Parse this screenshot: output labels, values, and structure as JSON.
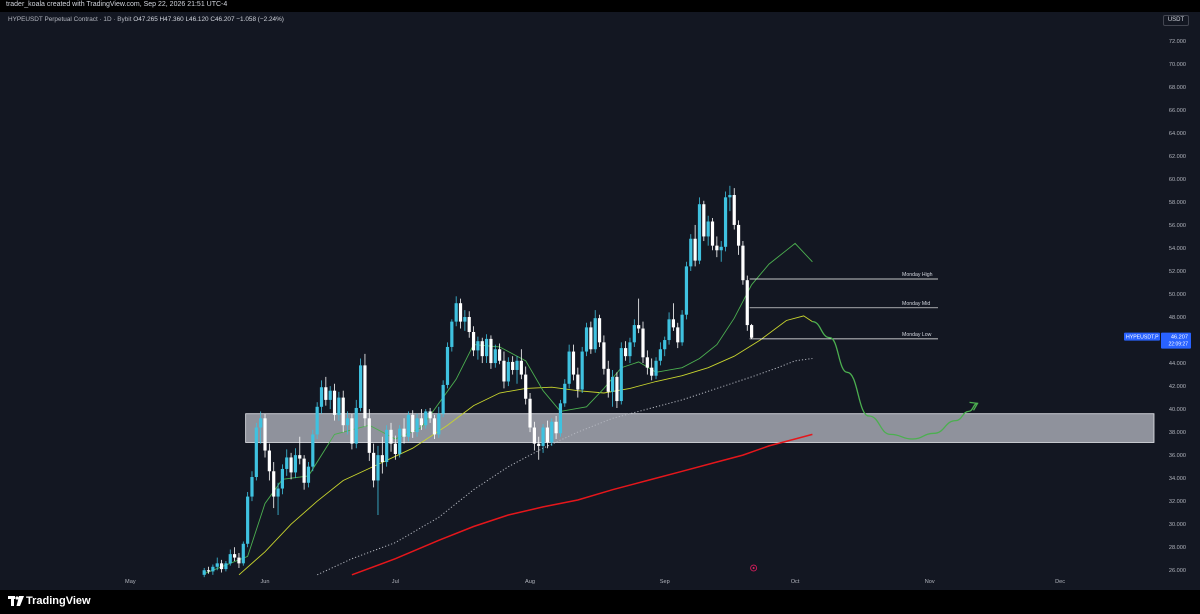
{
  "header": {
    "creator_text": "trader_koala created with TradingView.com, Sep 22, 2026 21:51 UTC-4",
    "symbol": "HYPEUSDT Perpetual Contract · 1D · Bybit",
    "ohlc": "O47.265 H47.360 L46.120 C46.207 −1.058 (−2.24%)"
  },
  "footer": {
    "brand": "TradingView"
  },
  "colors": {
    "background": "#131722",
    "up_candle": "#3fc2e0",
    "down_candle": "#ffffff",
    "ma_fast": "#4caf50",
    "ma_mid": "#c8d42e",
    "ma_dotted": "#b2b5be",
    "ma_slow": "#e5161b",
    "projection": "#4caf50",
    "price_label": "#2962ff"
  },
  "chart_data": {
    "type": "candlestick",
    "currency": "USDT",
    "ylim": [
      25.5,
      74.5
    ],
    "y_ticks": [
      "72.000",
      "70.000",
      "68.000",
      "66.000",
      "64.000",
      "62.000",
      "60.000",
      "58.000",
      "56.000",
      "54.000",
      "52.000",
      "50.000",
      "48.000",
      "46.000",
      "44.000",
      "42.000",
      "40.000",
      "38.000",
      "36.000",
      "34.000",
      "32.000",
      "30.000",
      "28.000",
      "26.000"
    ],
    "y_tick_values": [
      72,
      70,
      68,
      66,
      64,
      62,
      60,
      58,
      56,
      54,
      52,
      50,
      48,
      46,
      44,
      42,
      40,
      38,
      36,
      34,
      32,
      30,
      28,
      26
    ],
    "x_ticks": [
      {
        "label": "May",
        "date": "2026-05-01"
      },
      {
        "label": "Jun",
        "date": "2026-06-01"
      },
      {
        "label": "Jul",
        "date": "2026-07-01"
      },
      {
        "label": "Aug",
        "date": "2026-08-01"
      },
      {
        "label": "Sep",
        "date": "2026-09-01"
      },
      {
        "label": "Oct",
        "date": "2026-10-01"
      },
      {
        "label": "Nov",
        "date": "2026-11-01"
      },
      {
        "label": "Dec",
        "date": "2026-12-01"
      }
    ],
    "x_range": [
      "2026-04-01",
      "2026-12-24"
    ],
    "first_candle_date": "2026-05-18",
    "candles_ohlc": [
      [
        25.6,
        26.2,
        25.4,
        26.0
      ],
      [
        26.0,
        26.3,
        25.7,
        25.9
      ],
      [
        25.9,
        26.5,
        25.6,
        26.3
      ],
      [
        26.3,
        27.1,
        26.0,
        26.6
      ],
      [
        26.6,
        26.9,
        25.8,
        26.1
      ],
      [
        26.1,
        26.8,
        25.9,
        26.6
      ],
      [
        26.6,
        27.8,
        26.4,
        27.4
      ],
      [
        27.4,
        28.0,
        26.8,
        27.1
      ],
      [
        27.1,
        27.5,
        26.2,
        26.6
      ],
      [
        26.6,
        28.5,
        26.4,
        28.3
      ],
      [
        28.3,
        32.8,
        28.0,
        32.4
      ],
      [
        32.4,
        34.6,
        32.0,
        34.1
      ],
      [
        34.1,
        38.8,
        33.8,
        38.4
      ],
      [
        38.4,
        39.8,
        37.0,
        39.2
      ],
      [
        39.2,
        39.6,
        35.8,
        36.4
      ],
      [
        36.4,
        37.0,
        33.8,
        34.6
      ],
      [
        34.6,
        35.4,
        31.4,
        32.4
      ],
      [
        32.4,
        33.6,
        30.8,
        33.1
      ],
      [
        33.1,
        35.2,
        32.6,
        34.8
      ],
      [
        34.8,
        36.5,
        34.2,
        35.8
      ],
      [
        35.8,
        36.2,
        33.9,
        34.5
      ],
      [
        34.5,
        36.6,
        34.0,
        36.0
      ],
      [
        36.0,
        37.6,
        35.2,
        35.7
      ],
      [
        35.7,
        36.0,
        33.0,
        33.6
      ],
      [
        33.6,
        35.4,
        33.2,
        35.0
      ],
      [
        35.0,
        38.2,
        34.6,
        37.8
      ],
      [
        37.8,
        40.6,
        37.4,
        40.2
      ],
      [
        40.2,
        42.5,
        39.6,
        41.9
      ],
      [
        41.9,
        42.8,
        40.3,
        40.8
      ],
      [
        40.8,
        42.0,
        40.0,
        41.6
      ],
      [
        41.6,
        42.2,
        39.0,
        39.5
      ],
      [
        39.5,
        41.5,
        39.0,
        41.0
      ],
      [
        41.0,
        41.6,
        38.0,
        38.6
      ],
      [
        38.6,
        39.8,
        37.8,
        39.2
      ],
      [
        39.2,
        39.6,
        36.5,
        37.0
      ],
      [
        37.0,
        40.8,
        36.6,
        40.1
      ],
      [
        40.1,
        44.4,
        39.8,
        43.8
      ],
      [
        43.8,
        44.8,
        38.5,
        39.2
      ],
      [
        39.2,
        40.0,
        35.5,
        36.2
      ],
      [
        36.2,
        37.0,
        33.2,
        33.8
      ],
      [
        33.8,
        36.8,
        30.8,
        36.0
      ],
      [
        36.0,
        37.6,
        34.4,
        35.4
      ],
      [
        35.4,
        38.6,
        35.0,
        38.2
      ],
      [
        38.2,
        38.8,
        36.3,
        37.0
      ],
      [
        37.0,
        37.7,
        35.6,
        36.1
      ],
      [
        36.1,
        38.6,
        35.8,
        38.3
      ],
      [
        38.3,
        39.2,
        37.0,
        37.6
      ],
      [
        37.6,
        39.8,
        37.2,
        39.5
      ],
      [
        39.5,
        39.9,
        37.5,
        38.0
      ],
      [
        38.0,
        39.6,
        37.6,
        39.2
      ],
      [
        39.2,
        40.0,
        38.2,
        38.6
      ],
      [
        38.6,
        40.0,
        38.3,
        39.8
      ],
      [
        39.8,
        40.1,
        38.8,
        39.2
      ],
      [
        39.2,
        39.5,
        37.4,
        37.8
      ],
      [
        37.8,
        40.2,
        37.5,
        39.6
      ],
      [
        39.6,
        42.5,
        39.3,
        42.1
      ],
      [
        42.1,
        45.8,
        41.8,
        45.4
      ],
      [
        45.4,
        47.8,
        45.0,
        47.6
      ],
      [
        47.6,
        49.8,
        47.2,
        49.2
      ],
      [
        49.2,
        49.6,
        47.0,
        47.6
      ],
      [
        47.6,
        48.6,
        46.8,
        48.0
      ],
      [
        48.0,
        48.5,
        46.2,
        46.7
      ],
      [
        46.7,
        47.2,
        44.6,
        45.1
      ],
      [
        45.1,
        46.3,
        44.3,
        45.9
      ],
      [
        45.9,
        46.2,
        44.0,
        44.6
      ],
      [
        44.6,
        46.5,
        44.0,
        46.1
      ],
      [
        46.1,
        46.4,
        43.5,
        44.0
      ],
      [
        44.0,
        45.6,
        43.6,
        45.2
      ],
      [
        45.2,
        45.7,
        43.9,
        44.2
      ],
      [
        44.2,
        45.0,
        41.8,
        42.4
      ],
      [
        42.4,
        44.5,
        42.0,
        44.1
      ],
      [
        44.1,
        44.6,
        43.0,
        43.4
      ],
      [
        43.4,
        44.6,
        42.2,
        44.2
      ],
      [
        44.2,
        45.2,
        42.6,
        43.0
      ],
      [
        43.0,
        43.7,
        40.4,
        40.9
      ],
      [
        40.9,
        41.4,
        38.0,
        38.4
      ],
      [
        38.4,
        38.9,
        36.4,
        37.0
      ],
      [
        37.0,
        37.6,
        35.6,
        36.8
      ],
      [
        36.8,
        38.7,
        36.2,
        38.4
      ],
      [
        38.4,
        39.0,
        36.6,
        37.1
      ],
      [
        37.1,
        39.2,
        36.8,
        38.9
      ],
      [
        38.9,
        39.4,
        37.4,
        37.9
      ],
      [
        37.9,
        40.8,
        37.6,
        40.5
      ],
      [
        40.5,
        42.6,
        40.2,
        42.2
      ],
      [
        42.2,
        45.6,
        41.8,
        45.0
      ],
      [
        45.0,
        45.6,
        42.5,
        43.0
      ],
      [
        43.0,
        43.6,
        41.0,
        41.7
      ],
      [
        41.7,
        45.4,
        41.4,
        45.0
      ],
      [
        45.0,
        47.5,
        44.6,
        47.1
      ],
      [
        47.1,
        47.6,
        44.8,
        45.2
      ],
      [
        45.2,
        48.6,
        44.9,
        47.9
      ],
      [
        47.9,
        48.2,
        45.4,
        45.8
      ],
      [
        45.8,
        46.4,
        43.0,
        43.5
      ],
      [
        43.5,
        44.2,
        41.0,
        41.5
      ],
      [
        41.5,
        43.4,
        40.2,
        42.8
      ],
      [
        42.8,
        43.2,
        40.1,
        40.7
      ],
      [
        40.7,
        45.8,
        40.4,
        45.3
      ],
      [
        45.3,
        45.9,
        44.2,
        44.6
      ],
      [
        44.6,
        46.2,
        44.0,
        45.8
      ],
      [
        45.8,
        47.8,
        45.4,
        47.3
      ],
      [
        47.3,
        49.6,
        46.6,
        47.0
      ],
      [
        47.0,
        47.6,
        44.0,
        44.5
      ],
      [
        44.5,
        45.1,
        43.0,
        43.6
      ],
      [
        43.6,
        44.4,
        42.5,
        42.9
      ],
      [
        42.9,
        44.5,
        42.6,
        44.2
      ],
      [
        44.2,
        45.8,
        43.8,
        45.2
      ],
      [
        45.2,
        46.3,
        44.6,
        46.0
      ],
      [
        46.0,
        48.4,
        45.6,
        47.8
      ],
      [
        47.8,
        49.2,
        46.8,
        47.1
      ],
      [
        47.1,
        47.5,
        45.3,
        45.8
      ],
      [
        45.8,
        48.6,
        45.5,
        48.2
      ],
      [
        48.2,
        52.8,
        47.8,
        52.4
      ],
      [
        52.4,
        55.2,
        52.0,
        54.8
      ],
      [
        54.8,
        56.0,
        52.4,
        52.9
      ],
      [
        52.9,
        58.4,
        52.6,
        57.8
      ],
      [
        57.8,
        58.1,
        54.6,
        55.0
      ],
      [
        55.0,
        56.8,
        54.2,
        56.3
      ],
      [
        56.3,
        56.6,
        53.8,
        54.2
      ],
      [
        54.2,
        55.0,
        53.2,
        53.8
      ],
      [
        53.8,
        54.6,
        52.8,
        54.1
      ],
      [
        54.1,
        58.9,
        53.7,
        58.4
      ],
      [
        58.4,
        59.4,
        57.2,
        58.6
      ],
      [
        58.6,
        59.2,
        55.6,
        56.0
      ],
      [
        56.0,
        56.4,
        53.4,
        54.2
      ],
      [
        54.2,
        54.6,
        50.8,
        51.2
      ],
      [
        51.2,
        51.6,
        46.8,
        47.3
      ],
      [
        47.3,
        47.4,
        46.1,
        46.2
      ]
    ],
    "ma_fast_points": [
      [
        0,
        25.7
      ],
      [
        10,
        27.2
      ],
      [
        14,
        31.8
      ],
      [
        18,
        33.9
      ],
      [
        24,
        34.2
      ],
      [
        30,
        37.8
      ],
      [
        38,
        38.6
      ],
      [
        44,
        37.4
      ],
      [
        50,
        38.4
      ],
      [
        58,
        42.6
      ],
      [
        62,
        45.6
      ],
      [
        68,
        45.4
      ],
      [
        74,
        44.2
      ],
      [
        78,
        41.6
      ],
      [
        82,
        39.8
      ],
      [
        88,
        40.2
      ],
      [
        92,
        41.8
      ],
      [
        96,
        43.6
      ],
      [
        100,
        44.1
      ],
      [
        104,
        43.2
      ],
      [
        110,
        43.6
      ],
      [
        114,
        44.4
      ],
      [
        118,
        45.6
      ],
      [
        122,
        47.9
      ],
      [
        126,
        50.8
      ],
      [
        130,
        52.6
      ],
      [
        134,
        53.8
      ],
      [
        136,
        54.4
      ],
      [
        140,
        52.8
      ]
    ],
    "ma_mid_points": [
      [
        8,
        25.6
      ],
      [
        14,
        27.6
      ],
      [
        20,
        30.0
      ],
      [
        26,
        32.0
      ],
      [
        32,
        33.8
      ],
      [
        40,
        35.2
      ],
      [
        48,
        36.6
      ],
      [
        56,
        38.6
      ],
      [
        62,
        40.3
      ],
      [
        68,
        41.4
      ],
      [
        74,
        41.8
      ],
      [
        80,
        41.9
      ],
      [
        86,
        41.6
      ],
      [
        92,
        41.4
      ],
      [
        98,
        41.8
      ],
      [
        104,
        42.4
      ],
      [
        110,
        42.9
      ],
      [
        116,
        43.6
      ],
      [
        122,
        44.6
      ],
      [
        128,
        46.0
      ],
      [
        134,
        47.7
      ],
      [
        138,
        48.1
      ],
      [
        140,
        47.6
      ]
    ],
    "ma_dotted_points": [
      [
        26,
        25.6
      ],
      [
        34,
        27.0
      ],
      [
        44,
        28.4
      ],
      [
        54,
        30.6
      ],
      [
        62,
        33.0
      ],
      [
        70,
        35.0
      ],
      [
        78,
        36.6
      ],
      [
        86,
        38.0
      ],
      [
        94,
        39.2
      ],
      [
        102,
        40.0
      ],
      [
        110,
        40.8
      ],
      [
        118,
        41.8
      ],
      [
        126,
        42.8
      ],
      [
        132,
        43.6
      ],
      [
        136,
        44.2
      ],
      [
        140,
        44.4
      ]
    ],
    "ma_slow_points": [
      [
        34,
        25.6
      ],
      [
        44,
        27.0
      ],
      [
        54,
        28.6
      ],
      [
        62,
        29.8
      ],
      [
        70,
        30.8
      ],
      [
        78,
        31.5
      ],
      [
        86,
        32.1
      ],
      [
        94,
        33.0
      ],
      [
        102,
        33.8
      ],
      [
        110,
        34.6
      ],
      [
        118,
        35.4
      ],
      [
        124,
        36.0
      ],
      [
        130,
        36.8
      ],
      [
        136,
        37.4
      ],
      [
        140,
        37.8
      ]
    ],
    "support_zone": {
      "low": 37.1,
      "high": 39.6
    },
    "monday_levels": [
      {
        "label": "Monday High",
        "value": 51.3
      },
      {
        "label": "Monday Mid",
        "value": 48.8
      },
      {
        "label": "Monday Low",
        "value": 46.1
      }
    ],
    "projection_points": [
      [
        140,
        47.6
      ],
      [
        144,
        46.2
      ],
      [
        148,
        43.2
      ],
      [
        153,
        39.4
      ],
      [
        158,
        37.8
      ],
      [
        163,
        37.4
      ],
      [
        168,
        37.9
      ],
      [
        173,
        39.0
      ],
      [
        176,
        39.8
      ],
      [
        178,
        40.5
      ]
    ],
    "last_price": {
      "symbol": "HYPEUSDT.P",
      "value": 46.207,
      "countdown": "22:09:27"
    }
  }
}
